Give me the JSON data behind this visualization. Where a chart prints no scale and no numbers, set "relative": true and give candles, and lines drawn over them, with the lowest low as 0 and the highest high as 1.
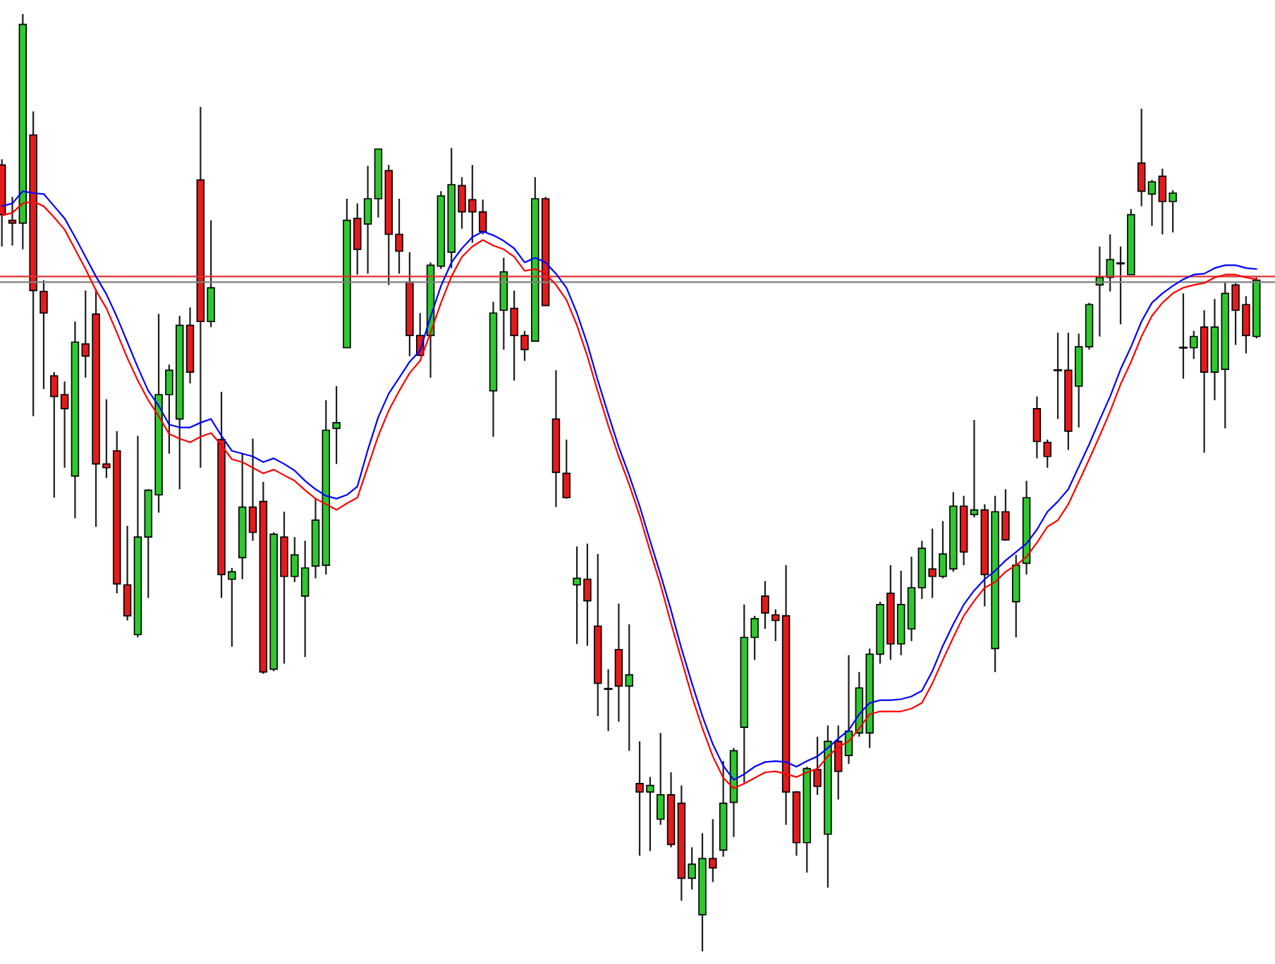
{
  "chart_data": {
    "type": "candlestick",
    "relative": true,
    "tick_labels": false,
    "categories": [
      null,
      null,
      null,
      null,
      null,
      null,
      null,
      null,
      null,
      null,
      null,
      null,
      null,
      null,
      null,
      null,
      null,
      null,
      null,
      null,
      null,
      null,
      null,
      null,
      null,
      null,
      null,
      null,
      null,
      null,
      null,
      null,
      null,
      null,
      null,
      null,
      null,
      null,
      null,
      null,
      null,
      null,
      null,
      null,
      null,
      null,
      null,
      null,
      null,
      null,
      null,
      null,
      null,
      null,
      null,
      null,
      null,
      null,
      null,
      null,
      null,
      null,
      null,
      null,
      null,
      null,
      null,
      null,
      null,
      null,
      null,
      null,
      null,
      null,
      null,
      null,
      null,
      null,
      null,
      null,
      null,
      null,
      null,
      null,
      null,
      null,
      null,
      null,
      null,
      null,
      null,
      null,
      null,
      null,
      null,
      null,
      null,
      null,
      null,
      null,
      null,
      null,
      null,
      null,
      null,
      null,
      null,
      null,
      null,
      null,
      null,
      null,
      null,
      null,
      null,
      null,
      null,
      null,
      null,
      null,
      null
    ],
    "ohlc": [
      [
        0.839,
        0.845,
        0.752,
        0.786
      ],
      [
        0.78,
        0.805,
        0.753,
        0.777
      ],
      [
        0.777,
        1.0,
        0.749,
        0.989
      ],
      [
        0.871,
        0.896,
        0.571,
        0.705
      ],
      [
        0.704,
        0.716,
        0.6,
        0.681
      ],
      [
        0.614,
        0.618,
        0.484,
        0.592
      ],
      [
        0.594,
        0.608,
        0.516,
        0.579
      ],
      [
        0.507,
        0.672,
        0.462,
        0.65
      ],
      [
        0.648,
        0.705,
        0.612,
        0.635
      ],
      [
        0.68,
        0.707,
        0.453,
        0.52
      ],
      [
        0.52,
        0.589,
        0.505,
        0.516
      ],
      [
        0.534,
        0.555,
        0.382,
        0.392
      ],
      [
        0.391,
        0.454,
        0.353,
        0.358
      ],
      [
        0.338,
        0.55,
        0.335,
        0.442
      ],
      [
        0.442,
        0.493,
        0.377,
        0.492
      ],
      [
        0.487,
        0.68,
        0.468,
        0.594
      ],
      [
        0.594,
        0.626,
        0.531,
        0.62
      ],
      [
        0.568,
        0.678,
        0.493,
        0.668
      ],
      [
        0.668,
        0.687,
        0.606,
        0.618
      ],
      [
        0.823,
        0.901,
        0.516,
        0.672
      ],
      [
        0.672,
        0.78,
        0.666,
        0.708
      ],
      [
        0.546,
        0.597,
        0.377,
        0.402
      ],
      [
        0.397,
        0.409,
        0.325,
        0.405
      ],
      [
        0.42,
        0.531,
        0.397,
        0.474
      ],
      [
        0.474,
        0.547,
        0.438,
        0.447
      ],
      [
        0.48,
        0.501,
        0.296,
        0.298
      ],
      [
        0.301,
        0.447,
        0.299,
        0.445
      ],
      [
        0.442,
        0.469,
        0.307,
        0.4
      ],
      [
        0.4,
        0.442,
        0.394,
        0.423
      ],
      [
        0.379,
        0.438,
        0.314,
        0.409
      ],
      [
        0.411,
        0.483,
        0.398,
        0.46
      ],
      [
        0.412,
        0.588,
        0.402,
        0.556
      ],
      [
        0.558,
        0.603,
        0.52,
        0.564
      ],
      [
        0.644,
        0.803,
        0.644,
        0.78
      ],
      [
        0.782,
        0.798,
        0.722,
        0.749
      ],
      [
        0.776,
        0.838,
        0.723,
        0.803
      ],
      [
        0.803,
        0.856,
        0.783,
        0.856
      ],
      [
        0.833,
        0.839,
        0.711,
        0.765
      ],
      [
        0.765,
        0.803,
        0.723,
        0.747
      ],
      [
        0.714,
        0.746,
        0.635,
        0.657
      ],
      [
        0.657,
        0.681,
        0.635,
        0.636
      ],
      [
        0.657,
        0.735,
        0.612,
        0.732
      ],
      [
        0.731,
        0.811,
        0.728,
        0.806
      ],
      [
        0.746,
        0.857,
        0.729,
        0.818
      ],
      [
        0.817,
        0.826,
        0.771,
        0.789
      ],
      [
        0.802,
        0.839,
        0.756,
        0.789
      ],
      [
        0.789,
        0.802,
        0.765,
        0.768
      ],
      [
        0.598,
        0.693,
        0.549,
        0.681
      ],
      [
        0.684,
        0.74,
        0.642,
        0.725
      ],
      [
        0.686,
        0.705,
        0.609,
        0.657
      ],
      [
        0.657,
        0.662,
        0.63,
        0.642
      ],
      [
        0.651,
        0.826,
        0.651,
        0.803
      ],
      [
        0.803,
        0.805,
        0.689,
        0.689
      ],
      [
        0.568,
        0.62,
        0.474,
        0.511
      ],
      [
        0.51,
        0.546,
        0.483,
        0.484
      ],
      [
        0.391,
        0.432,
        0.328,
        0.398
      ],
      [
        0.397,
        0.435,
        0.326,
        0.374
      ],
      [
        0.347,
        0.424,
        0.251,
        0.286
      ],
      [
        0.28,
        0.301,
        0.235,
        0.28
      ],
      [
        0.322,
        0.371,
        0.245,
        0.283
      ],
      [
        0.283,
        0.349,
        0.214,
        0.295
      ],
      [
        0.179,
        0.224,
        0.102,
        0.17
      ],
      [
        0.17,
        0.186,
        0.107,
        0.177
      ],
      [
        0.141,
        0.233,
        0.135,
        0.167
      ],
      [
        0.167,
        0.191,
        0.111,
        0.114
      ],
      [
        0.158,
        0.177,
        0.054,
        0.078
      ],
      [
        0.078,
        0.111,
        0.066,
        0.093
      ],
      [
        0.039,
        0.126,
        0.0,
        0.099
      ],
      [
        0.099,
        0.141,
        0.074,
        0.089
      ],
      [
        0.108,
        0.203,
        0.101,
        0.158
      ],
      [
        0.159,
        0.217,
        0.122,
        0.214
      ],
      [
        0.239,
        0.37,
        0.18,
        0.335
      ],
      [
        0.335,
        0.358,
        0.311,
        0.355
      ],
      [
        0.379,
        0.395,
        0.344,
        0.361
      ],
      [
        0.359,
        0.365,
        0.331,
        0.353
      ],
      [
        0.358,
        0.412,
        0.135,
        0.17
      ],
      [
        0.17,
        0.171,
        0.102,
        0.116
      ],
      [
        0.116,
        0.197,
        0.084,
        0.195
      ],
      [
        0.194,
        0.229,
        0.167,
        0.176
      ],
      [
        0.125,
        0.241,
        0.068,
        0.224
      ],
      [
        0.224,
        0.241,
        0.162,
        0.192
      ],
      [
        0.209,
        0.316,
        0.2,
        0.235
      ],
      [
        0.233,
        0.298,
        0.229,
        0.281
      ],
      [
        0.233,
        0.323,
        0.217,
        0.317
      ],
      [
        0.317,
        0.373,
        0.307,
        0.37
      ],
      [
        0.382,
        0.412,
        0.311,
        0.328
      ],
      [
        0.328,
        0.406,
        0.316,
        0.37
      ],
      [
        0.344,
        0.421,
        0.331,
        0.388
      ],
      [
        0.388,
        0.438,
        0.376,
        0.43
      ],
      [
        0.408,
        0.451,
        0.377,
        0.4
      ],
      [
        0.4,
        0.459,
        0.398,
        0.424
      ],
      [
        0.408,
        0.49,
        0.405,
        0.475
      ],
      [
        0.475,
        0.486,
        0.412,
        0.426
      ],
      [
        0.466,
        0.567,
        0.463,
        0.471
      ],
      [
        0.471,
        0.477,
        0.368,
        0.402
      ],
      [
        0.323,
        0.486,
        0.298,
        0.469
      ],
      [
        0.469,
        0.493,
        0.438,
        0.439
      ],
      [
        0.373,
        0.423,
        0.335,
        0.412
      ],
      [
        0.414,
        0.502,
        0.402,
        0.484
      ],
      [
        0.579,
        0.592,
        0.526,
        0.544
      ],
      [
        0.543,
        0.546,
        0.516,
        0.528
      ],
      [
        0.62,
        0.66,
        0.568,
        0.62
      ],
      [
        0.62,
        0.66,
        0.535,
        0.555
      ],
      [
        0.603,
        0.659,
        0.559,
        0.645
      ],
      [
        0.645,
        0.692,
        0.642,
        0.69
      ],
      [
        0.711,
        0.752,
        0.656,
        0.719
      ],
      [
        0.719,
        0.765,
        0.704,
        0.738
      ],
      [
        0.734,
        0.752,
        0.669,
        0.734
      ],
      [
        0.722,
        0.792,
        0.722,
        0.786
      ],
      [
        0.841,
        0.899,
        0.795,
        0.811
      ],
      [
        0.808,
        0.823,
        0.774,
        0.821
      ],
      [
        0.827,
        0.835,
        0.765,
        0.8
      ],
      [
        0.8,
        0.812,
        0.767,
        0.809
      ],
      [
        0.644,
        0.702,
        0.611,
        0.644
      ],
      [
        0.644,
        0.662,
        0.632,
        0.656
      ],
      [
        0.666,
        0.684,
        0.532,
        0.618
      ],
      [
        0.618,
        0.696,
        0.588,
        0.666
      ],
      [
        0.621,
        0.714,
        0.558,
        0.702
      ],
      [
        0.711,
        0.713,
        0.647,
        0.684
      ],
      [
        0.69,
        0.699,
        0.638,
        0.657
      ],
      [
        0.656,
        0.719,
        0.654,
        0.716
      ]
    ],
    "colors": [
      "#e41b1b",
      "#e41b1b",
      "#2ec82e",
      "#e41b1b",
      "#e41b1b",
      "#e41b1b",
      "#e41b1b",
      "#2ec82e",
      "#e41b1b",
      "#e41b1b",
      "#e41b1b",
      "#e41b1b",
      "#e41b1b",
      "#2ec82e",
      "#2ec82e",
      "#2ec82e",
      "#2ec82e",
      "#2ec82e",
      "#e41b1b",
      "#e41b1b",
      "#2ec82e",
      "#e41b1b",
      "#2ec82e",
      "#2ec82e",
      "#e41b1b",
      "#e41b1b",
      "#2ec82e",
      "#e41b1b",
      "#2ec82e",
      "#2ec82e",
      "#2ec82e",
      "#2ec82e",
      "#2ec82e",
      "#2ec82e",
      "#e41b1b",
      "#2ec82e",
      "#2ec82e",
      "#e41b1b",
      "#e41b1b",
      "#e41b1b",
      "#e41b1b",
      "#2ec82e",
      "#2ec82e",
      "#2ec82e",
      "#e41b1b",
      "#e41b1b",
      "#e41b1b",
      "#2ec82e",
      "#2ec82e",
      "#e41b1b",
      "#e41b1b",
      "#2ec82e",
      "#e41b1b",
      "#e41b1b",
      "#e41b1b",
      "#2ec82e",
      "#e41b1b",
      "#e41b1b",
      "#000000",
      "#e41b1b",
      "#2ec82e",
      "#e41b1b",
      "#2ec82e",
      "#2ec82e",
      "#e41b1b",
      "#e41b1b",
      "#2ec82e",
      "#2ec82e",
      "#e41b1b",
      "#2ec82e",
      "#2ec82e",
      "#2ec82e",
      "#2ec82e",
      "#e41b1b",
      "#e41b1b",
      "#e41b1b",
      "#e41b1b",
      "#2ec82e",
      "#e41b1b",
      "#2ec82e",
      "#e41b1b",
      "#2ec82e",
      "#2ec82e",
      "#2ec82e",
      "#2ec82e",
      "#e41b1b",
      "#2ec82e",
      "#2ec82e",
      "#2ec82e",
      "#e41b1b",
      "#2ec82e",
      "#2ec82e",
      "#e41b1b",
      "#2ec82e",
      "#e41b1b",
      "#2ec82e",
      "#e41b1b",
      "#2ec82e",
      "#2ec82e",
      "#e41b1b",
      "#e41b1b",
      "#000000",
      "#e41b1b",
      "#2ec82e",
      "#2ec82e",
      "#2ec82e",
      "#2ec82e",
      "#000000",
      "#2ec82e",
      "#e41b1b",
      "#2ec82e",
      "#e41b1b",
      "#2ec82e",
      "#000000",
      "#2ec82e",
      "#e41b1b",
      "#2ec82e",
      "#2ec82e",
      "#e41b1b",
      "#e41b1b",
      "#2ec82e"
    ],
    "series": [
      {
        "type": "line",
        "color": "#0000ff",
        "values": [
          0.795,
          0.798,
          0.811,
          0.809,
          0.808,
          0.795,
          0.782,
          0.762,
          0.741,
          0.72,
          0.701,
          0.677,
          0.65,
          0.623,
          0.598,
          0.582,
          0.562,
          0.559,
          0.559,
          0.564,
          0.568,
          0.55,
          0.534,
          0.531,
          0.528,
          0.522,
          0.526,
          0.52,
          0.513,
          0.502,
          0.493,
          0.486,
          0.483,
          0.487,
          0.496,
          0.535,
          0.57,
          0.595,
          0.612,
          0.629,
          0.641,
          0.677,
          0.71,
          0.735,
          0.75,
          0.762,
          0.768,
          0.764,
          0.758,
          0.75,
          0.735,
          0.74,
          0.735,
          0.723,
          0.708,
          0.681,
          0.648,
          0.609,
          0.573,
          0.538,
          0.508,
          0.475,
          0.438,
          0.402,
          0.364,
          0.323,
          0.286,
          0.251,
          0.221,
          0.198,
          0.183,
          0.189,
          0.197,
          0.202,
          0.203,
          0.202,
          0.197,
          0.203,
          0.208,
          0.217,
          0.227,
          0.236,
          0.253,
          0.265,
          0.268,
          0.268,
          0.269,
          0.272,
          0.278,
          0.299,
          0.326,
          0.349,
          0.37,
          0.385,
          0.397,
          0.406,
          0.417,
          0.426,
          0.435,
          0.45,
          0.469,
          0.48,
          0.493,
          0.517,
          0.541,
          0.567,
          0.592,
          0.621,
          0.645,
          0.672,
          0.692,
          0.702,
          0.71,
          0.717,
          0.722,
          0.723,
          0.729,
          0.732,
          0.732,
          0.729,
          0.728
        ]
      },
      {
        "type": "line",
        "color": "#ff0000",
        "values": [
          0.785,
          0.788,
          0.798,
          0.8,
          0.795,
          0.783,
          0.77,
          0.749,
          0.728,
          0.705,
          0.686,
          0.66,
          0.633,
          0.609,
          0.588,
          0.571,
          0.552,
          0.547,
          0.543,
          0.549,
          0.553,
          0.54,
          0.525,
          0.522,
          0.516,
          0.51,
          0.514,
          0.508,
          0.502,
          0.492,
          0.483,
          0.477,
          0.471,
          0.478,
          0.484,
          0.517,
          0.55,
          0.577,
          0.598,
          0.617,
          0.63,
          0.66,
          0.692,
          0.72,
          0.741,
          0.752,
          0.759,
          0.753,
          0.749,
          0.741,
          0.726,
          0.728,
          0.723,
          0.711,
          0.695,
          0.668,
          0.635,
          0.597,
          0.561,
          0.528,
          0.498,
          0.465,
          0.427,
          0.391,
          0.35,
          0.311,
          0.272,
          0.238,
          0.208,
          0.185,
          0.174,
          0.179,
          0.185,
          0.191,
          0.192,
          0.189,
          0.186,
          0.191,
          0.195,
          0.208,
          0.218,
          0.224,
          0.238,
          0.253,
          0.256,
          0.256,
          0.256,
          0.259,
          0.265,
          0.286,
          0.311,
          0.335,
          0.358,
          0.374,
          0.388,
          0.394,
          0.405,
          0.412,
          0.421,
          0.436,
          0.453,
          0.46,
          0.477,
          0.501,
          0.525,
          0.55,
          0.576,
          0.605,
          0.629,
          0.656,
          0.678,
          0.692,
          0.702,
          0.708,
          0.711,
          0.713,
          0.719,
          0.722,
          0.722,
          0.719,
          0.717
        ]
      }
    ],
    "ref_lines": [
      {
        "axis": "y",
        "value": 0.72,
        "color": "#e03030"
      },
      {
        "axis": "y",
        "value": 0.714,
        "color": "#808080"
      }
    ]
  }
}
